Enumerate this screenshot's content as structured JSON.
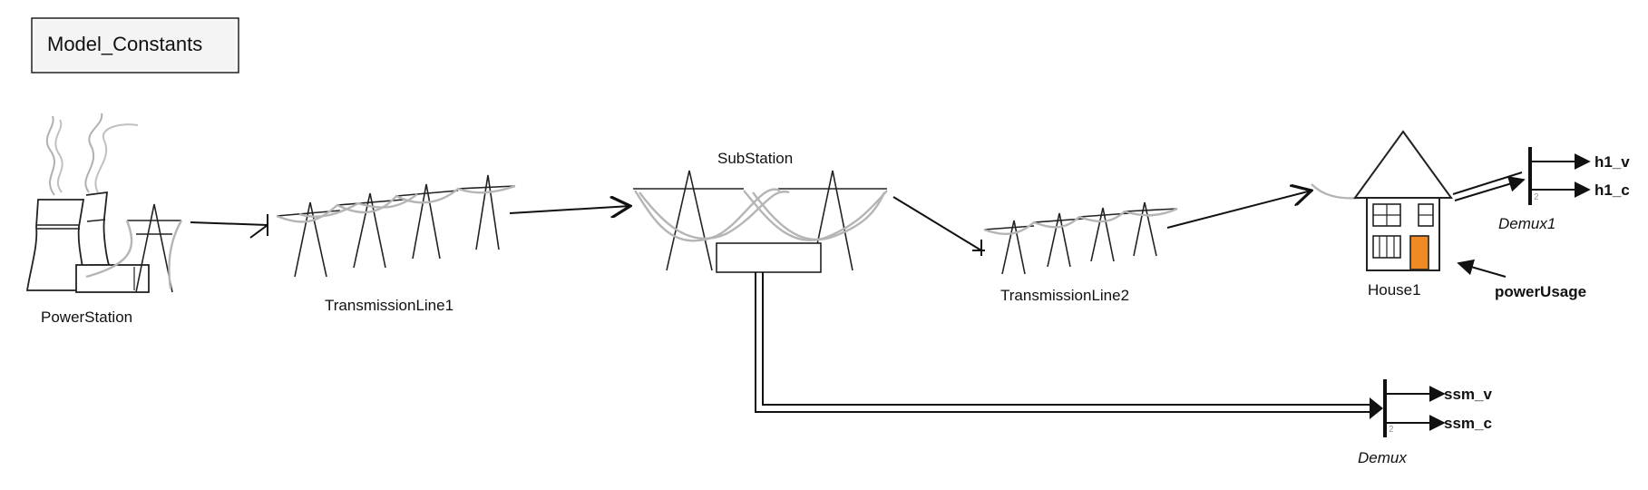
{
  "diagram": {
    "model_constants_label": "Model_Constants",
    "blocks": {
      "power_station": "PowerStation",
      "transmission_line_1": "TransmissionLine1",
      "sub_station": "SubStation",
      "transmission_line_2": "TransmissionLine2",
      "house_1": "House1",
      "demux_1": "Demux1",
      "demux": "Demux"
    },
    "signals": {
      "power_usage": "powerUsage",
      "h1_v": "h1_v",
      "h1_c": "h1_c",
      "ssm_v": "ssm_v",
      "ssm_c": "ssm_c"
    },
    "ports": {
      "demux_1_count": "2",
      "demux_count": "2"
    },
    "colors": {
      "door": "#f08a24",
      "cable": "#b5b5b5",
      "line": "#111111"
    }
  }
}
